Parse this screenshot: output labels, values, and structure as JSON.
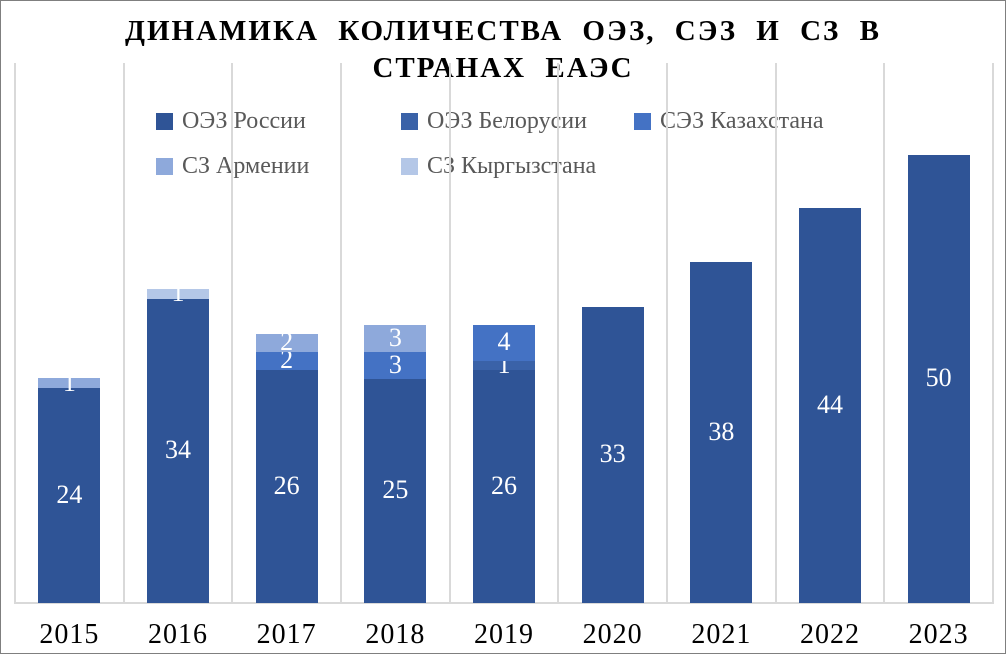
{
  "title": {
    "line1": "ДИНАМИКА КОЛИЧЕСТВА ОЭЗ, СЭЗ И СЗ В",
    "line2": "СТРАНАХ ЕАЭС"
  },
  "legend": {
    "text_color": "#595959",
    "items": [
      {
        "label": "ОЭЗ России",
        "color": "#2F5496"
      },
      {
        "label": "ОЭЗ Белорусии",
        "color": "#3A62A8"
      },
      {
        "label": "СЭЗ Казахстана",
        "color": "#4472C4"
      },
      {
        "label": "СЗ Армении",
        "color": "#8EA9DB"
      },
      {
        "label": "СЗ Кыргызстана",
        "color": "#B4C7E7"
      }
    ]
  },
  "chart_data": {
    "type": "bar",
    "stacked": true,
    "title": "ДИНАМИКА КОЛИЧЕСТВА ОЭЗ, СЭЗ И СЗ В СТРАНАХ ЕАЭС",
    "xlabel": "",
    "ylabel": "",
    "ylim": [
      0,
      60
    ],
    "grid": "vertical-category-gridlines",
    "gridline_color": "#D9D9D9",
    "axis_label_color": "#000000",
    "data_label_color": "#FFFFFF",
    "legend_position": "top",
    "categories": [
      "2015",
      "2016",
      "2017",
      "2018",
      "2019",
      "2020",
      "2021",
      "2022",
      "2023"
    ],
    "series": [
      {
        "name": "ОЭЗ России",
        "color": "#2F5496",
        "values": [
          24,
          34,
          26,
          25,
          26,
          33,
          38,
          44,
          50
        ]
      },
      {
        "name": "ОЭЗ Белорусии",
        "color": "#3A62A8",
        "values": [
          0,
          0,
          0,
          0,
          1,
          0,
          0,
          0,
          0
        ]
      },
      {
        "name": "СЭЗ Казахстана",
        "color": "#4472C4",
        "values": [
          0,
          0,
          2,
          3,
          4,
          0,
          0,
          0,
          0
        ]
      },
      {
        "name": "СЗ Армении",
        "color": "#8EA9DB",
        "values": [
          1,
          0,
          2,
          3,
          0,
          0,
          0,
          0,
          0
        ]
      },
      {
        "name": "СЗ Кыргызстана",
        "color": "#B4C7E7",
        "values": [
          0,
          1,
          0,
          0,
          0,
          0,
          0,
          0,
          0
        ]
      }
    ],
    "totals": [
      25,
      35,
      30,
      31,
      31,
      33,
      38,
      44,
      50
    ]
  }
}
